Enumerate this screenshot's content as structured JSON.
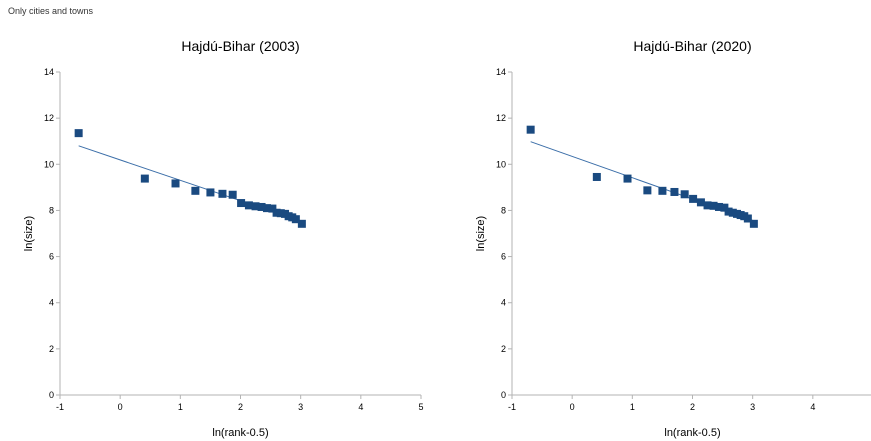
{
  "caption": "Only cities and towns",
  "chart_data": [
    {
      "type": "scatter",
      "title": "Hajdú-Bihar (2003)",
      "xlabel": "ln(rank-0.5)",
      "ylabel": "ln(size)",
      "xlim": [
        -1,
        5
      ],
      "ylim": [
        0,
        14
      ],
      "xticks": [
        -1,
        0,
        1,
        2,
        3,
        4,
        5
      ],
      "yticks": [
        0,
        2,
        4,
        6,
        8,
        10,
        12,
        14
      ],
      "grid": false,
      "marker_color": "#1a4a80",
      "trendline_color": "#3b6ea8",
      "points": [
        {
          "x": -0.69,
          "y": 11.35
        },
        {
          "x": 0.41,
          "y": 9.38
        },
        {
          "x": 0.92,
          "y": 9.17
        },
        {
          "x": 1.25,
          "y": 8.85
        },
        {
          "x": 1.5,
          "y": 8.78
        },
        {
          "x": 1.7,
          "y": 8.72
        },
        {
          "x": 1.87,
          "y": 8.68
        },
        {
          "x": 2.01,
          "y": 8.32
        },
        {
          "x": 2.14,
          "y": 8.22
        },
        {
          "x": 2.25,
          "y": 8.18
        },
        {
          "x": 2.35,
          "y": 8.15
        },
        {
          "x": 2.44,
          "y": 8.1
        },
        {
          "x": 2.53,
          "y": 8.08
        },
        {
          "x": 2.6,
          "y": 7.9
        },
        {
          "x": 2.67,
          "y": 7.88
        },
        {
          "x": 2.74,
          "y": 7.85
        },
        {
          "x": 2.8,
          "y": 7.75
        },
        {
          "x": 2.86,
          "y": 7.7
        },
        {
          "x": 2.92,
          "y": 7.62
        },
        {
          "x": 3.02,
          "y": 7.42
        }
      ],
      "trendline": {
        "x": [
          -0.69,
          3.02
        ],
        "y": [
          10.8,
          7.52
        ]
      }
    },
    {
      "type": "scatter",
      "title": "Hajdú-Bihar (2020)",
      "xlabel": "ln(rank-0.5)",
      "ylabel": "ln(size)",
      "xlim": [
        -1,
        5
      ],
      "ylim": [
        0,
        14
      ],
      "xticks": [
        -1,
        0,
        1,
        2,
        3,
        4
      ],
      "yticks": [
        0,
        2,
        4,
        6,
        8,
        10,
        12,
        14
      ],
      "grid": false,
      "marker_color": "#1a4a80",
      "trendline_color": "#3b6ea8",
      "points": [
        {
          "x": -0.69,
          "y": 11.5
        },
        {
          "x": 0.41,
          "y": 9.45
        },
        {
          "x": 0.92,
          "y": 9.38
        },
        {
          "x": 1.25,
          "y": 8.87
        },
        {
          "x": 1.5,
          "y": 8.85
        },
        {
          "x": 1.7,
          "y": 8.8
        },
        {
          "x": 1.87,
          "y": 8.7
        },
        {
          "x": 2.01,
          "y": 8.5
        },
        {
          "x": 2.14,
          "y": 8.35
        },
        {
          "x": 2.25,
          "y": 8.22
        },
        {
          "x": 2.35,
          "y": 8.2
        },
        {
          "x": 2.44,
          "y": 8.15
        },
        {
          "x": 2.53,
          "y": 8.12
        },
        {
          "x": 2.6,
          "y": 7.95
        },
        {
          "x": 2.67,
          "y": 7.9
        },
        {
          "x": 2.74,
          "y": 7.85
        },
        {
          "x": 2.8,
          "y": 7.8
        },
        {
          "x": 2.86,
          "y": 7.75
        },
        {
          "x": 2.92,
          "y": 7.65
        },
        {
          "x": 3.02,
          "y": 7.42
        }
      ],
      "trendline": {
        "x": [
          -0.69,
          3.02
        ],
        "y": [
          10.98,
          7.55
        ]
      }
    }
  ]
}
